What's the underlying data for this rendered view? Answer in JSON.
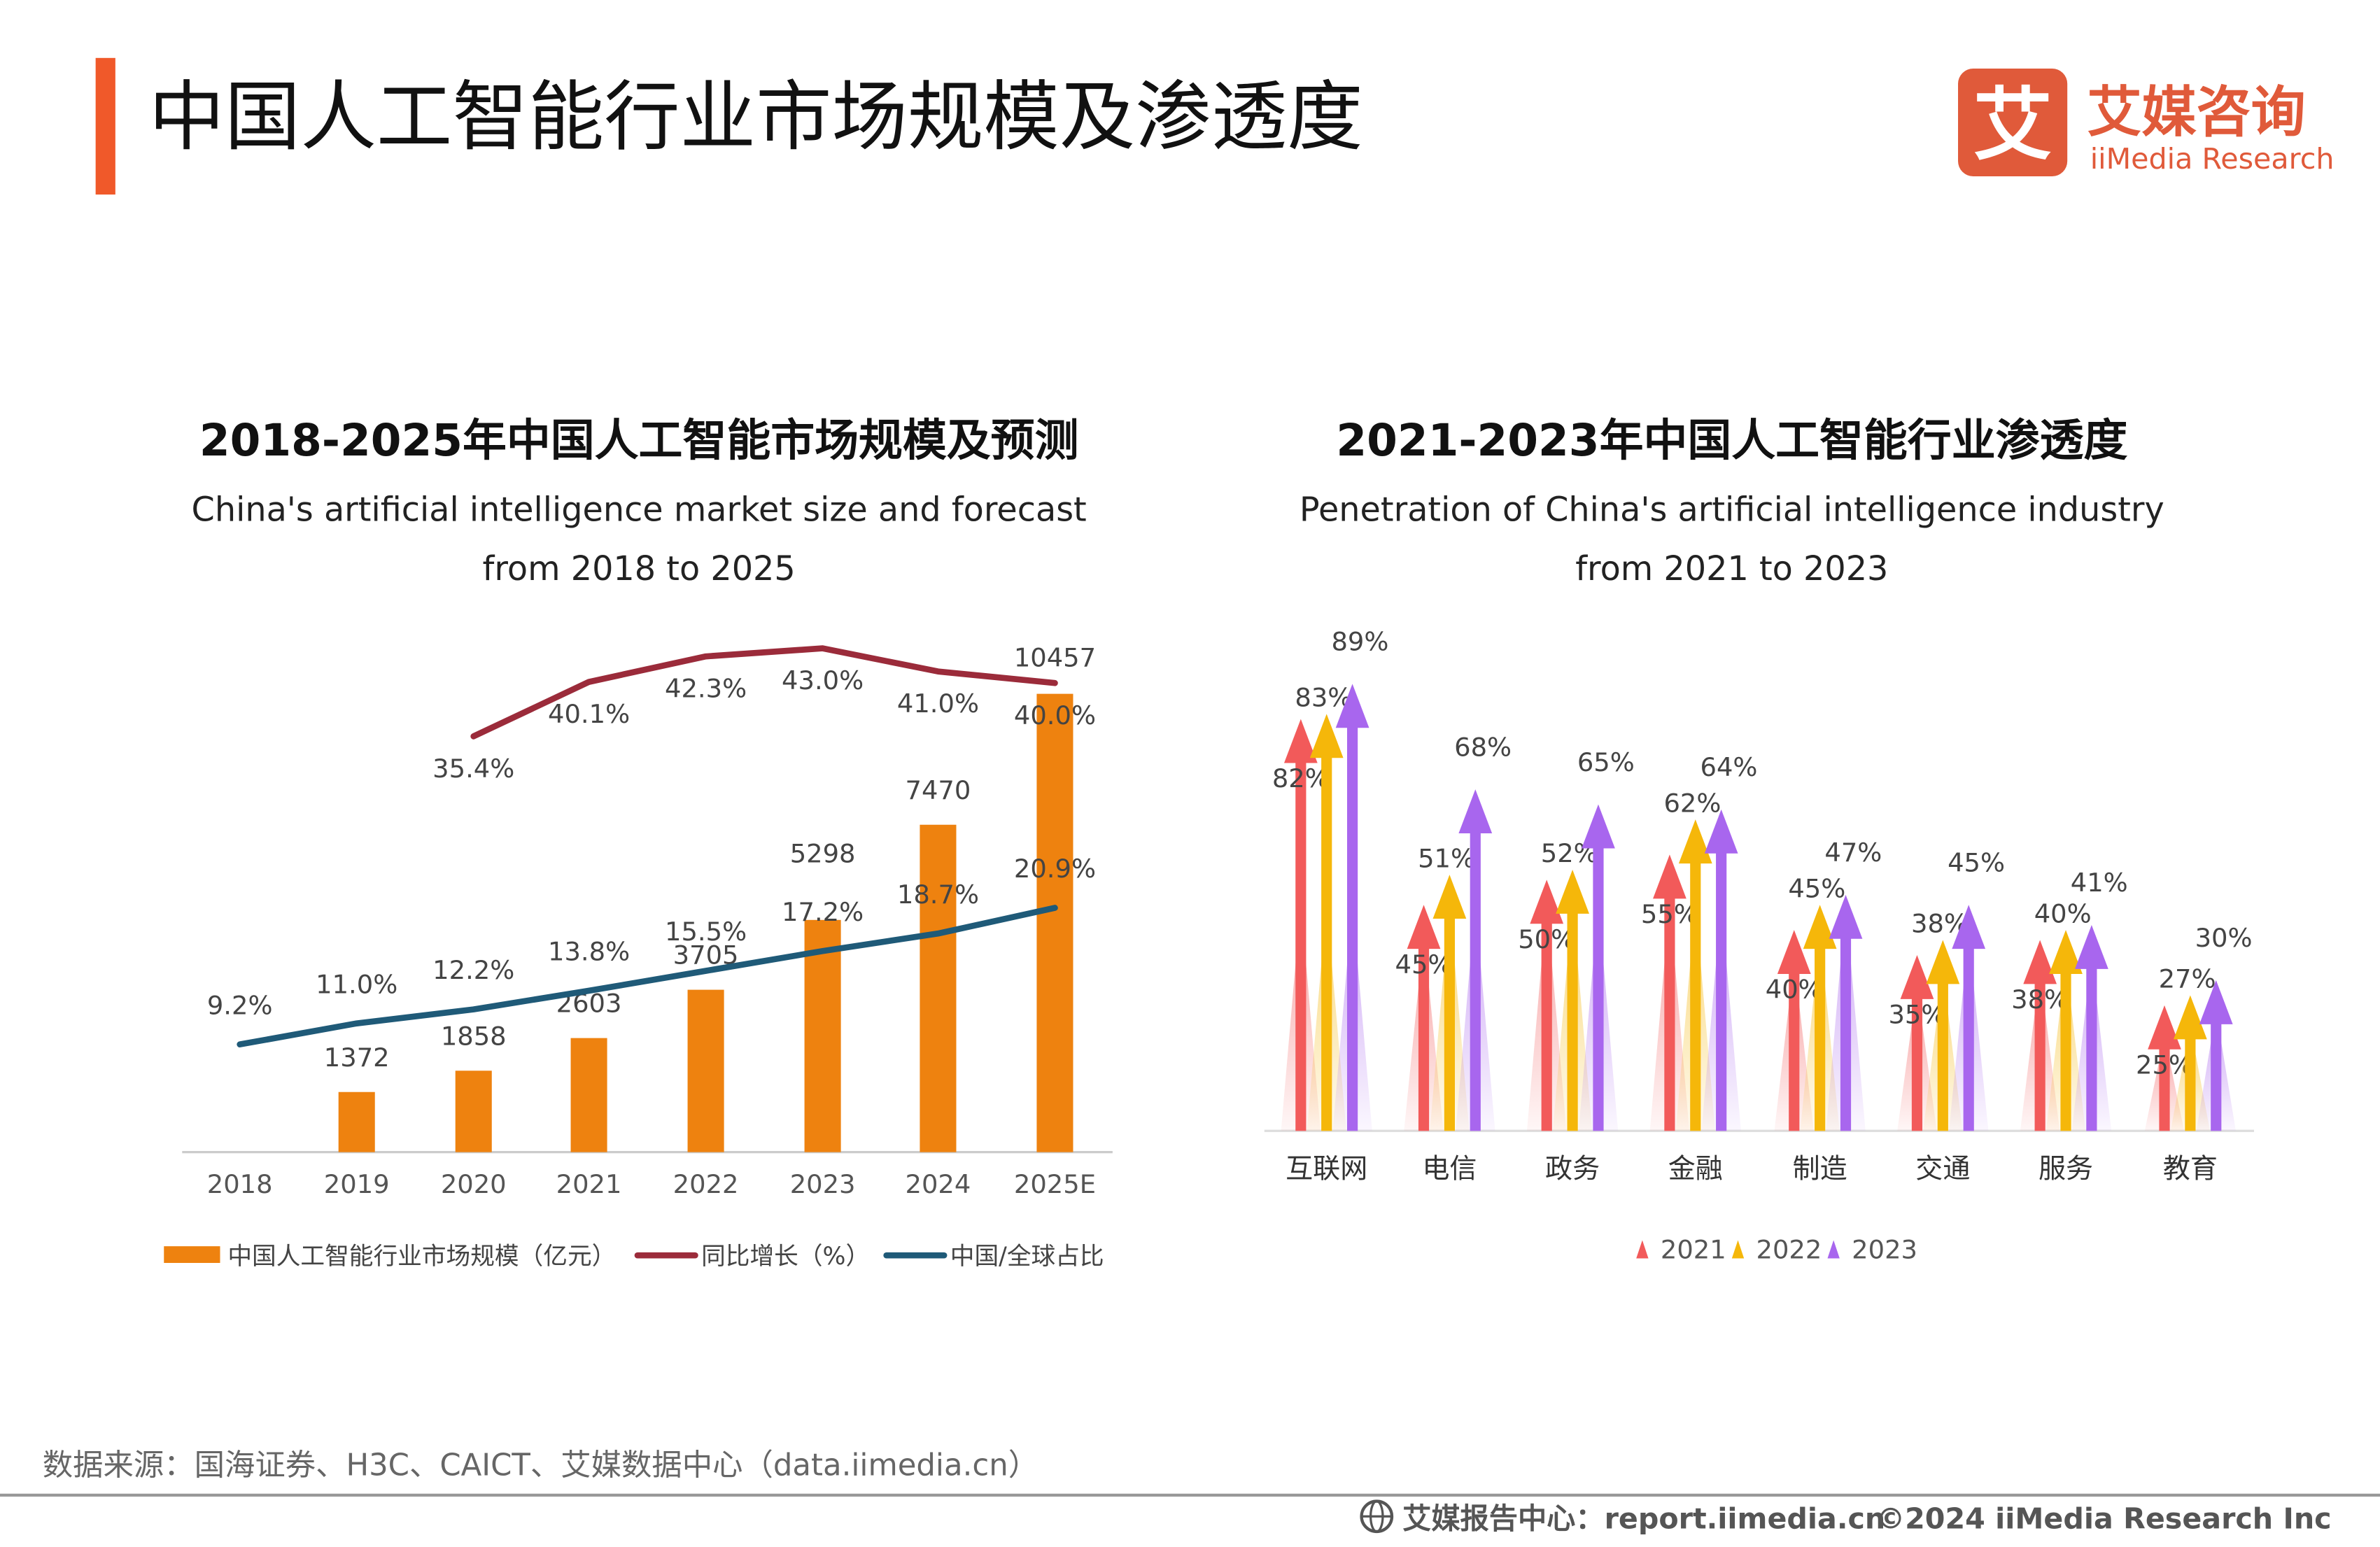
{
  "header": {
    "title": "中国人工智能行业市场规模及渗透度",
    "accent_color": "#F0592A",
    "logo": {
      "cn": "艾媒咨询",
      "en": "iiMedia Research",
      "mark": "艾",
      "color": "#E05A3A"
    }
  },
  "chart_data": [
    {
      "type": "bar+line",
      "title": "2018-2025年中国人工智能市场规模及预测",
      "subtitle_line1": "China's artificial intelligence market size and forecast",
      "subtitle_line2": "from 2018 to 2025",
      "categories": [
        "2018",
        "2019",
        "2020",
        "2021",
        "2022",
        "2023",
        "2024",
        "2025E"
      ],
      "series": [
        {
          "name": "中国人工智能行业市场规模（亿元）",
          "type": "bar",
          "color": "#EE820F",
          "values": [
            null,
            1372,
            1858,
            2603,
            3705,
            5298,
            7470,
            10457
          ]
        },
        {
          "name": "同比增长（%）",
          "type": "line",
          "color": "#9B2B3A",
          "values": [
            null,
            null,
            35.4,
            40.1,
            42.3,
            43.0,
            41.0,
            40.0
          ],
          "labels": [
            null,
            null,
            "35.4%",
            "40.1%",
            "42.3%",
            "43.0%",
            "41.0%",
            "40.0%"
          ]
        },
        {
          "name": "中国/全球占比",
          "type": "line",
          "color": "#1F5A78",
          "values": [
            9.2,
            11.0,
            12.2,
            13.8,
            15.5,
            17.2,
            18.7,
            20.9
          ],
          "labels": [
            "9.2%",
            "11.0%",
            "12.2%",
            "13.8%",
            "15.5%",
            "17.2%",
            "18.7%",
            "20.9%"
          ]
        }
      ],
      "legend": "bottom",
      "grid": false
    },
    {
      "type": "bar",
      "style": "arrows",
      "title": "2021-2023年中国人工智能行业渗透度",
      "subtitle_line1": "Penetration of China's artificial intelligence industry",
      "subtitle_line2": "from 2021 to 2023",
      "categories": [
        "互联网",
        "电信",
        "政务",
        "金融",
        "制造",
        "交通",
        "服务",
        "教育"
      ],
      "series": [
        {
          "name": "2021",
          "color": "#F25A5A",
          "values": [
            82,
            45,
            50,
            55,
            40,
            35,
            38,
            25
          ]
        },
        {
          "name": "2022",
          "color": "#F5B70A",
          "values": [
            83,
            51,
            52,
            62,
            45,
            38,
            40,
            27
          ]
        },
        {
          "name": "2023",
          "color": "#A866EE",
          "values": [
            89,
            68,
            65,
            64,
            47,
            45,
            41,
            30
          ]
        }
      ],
      "unit": "%",
      "legend": "bottom",
      "grid": false
    }
  ],
  "footer": {
    "source": "数据来源：国海证券、H3C、CAICT、艾媒数据中心（data.iimedia.cn）",
    "report_center": "艾媒报告中心：report.iimedia.cn",
    "copyright": "©2024  iiMedia Research  Inc"
  }
}
